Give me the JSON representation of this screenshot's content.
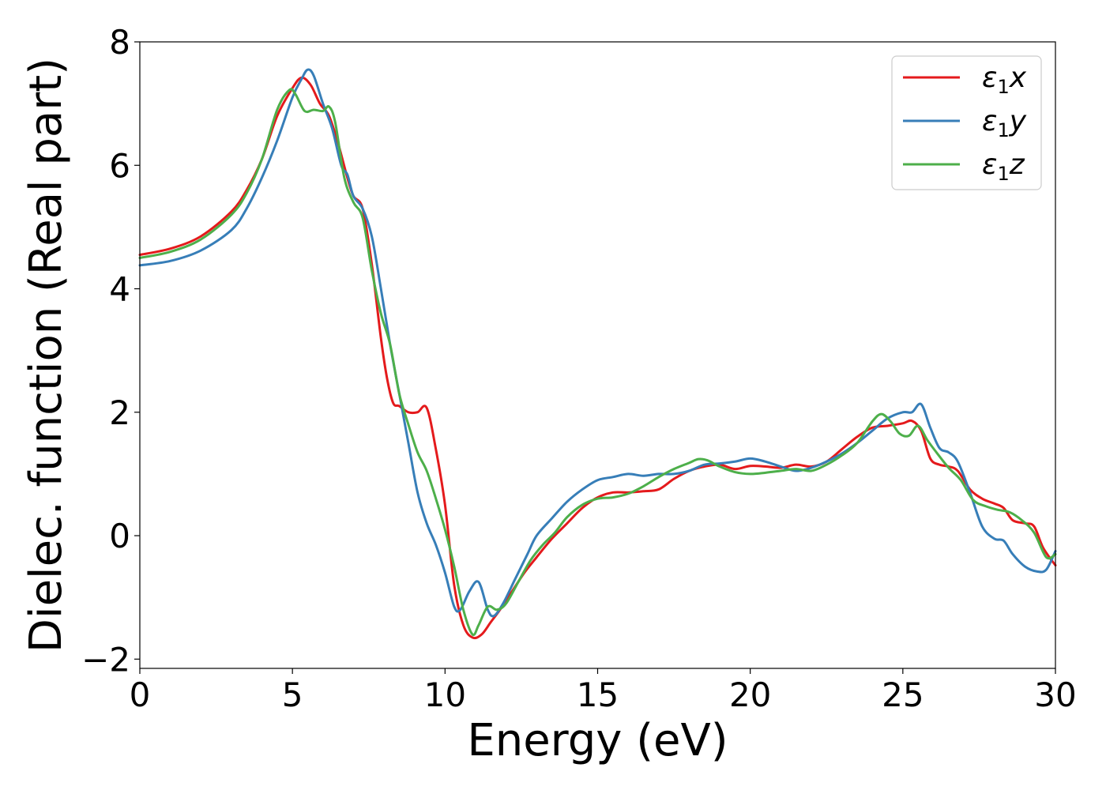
{
  "chart_data": {
    "type": "line",
    "title": "",
    "xlabel": "Energy (eV)",
    "ylabel": "Dielec. function (Real part)",
    "xlim": [
      0,
      30
    ],
    "ylim": [
      -2.15,
      8
    ],
    "xticks": [
      0,
      5,
      10,
      15,
      20,
      25,
      30
    ],
    "yticks": [
      -2,
      0,
      2,
      4,
      6,
      8
    ],
    "xtick_labels": [
      "0",
      "5",
      "10",
      "15",
      "20",
      "25",
      "30"
    ],
    "ytick_labels": [
      "−2",
      "0",
      "2",
      "4",
      "6",
      "8"
    ],
    "grid": false,
    "legend_position": "top-right",
    "series": [
      {
        "name": "ε₁x",
        "legend_base": "ε",
        "legend_sub": "1",
        "legend_var": "x",
        "color": "#e41a1c",
        "x": [
          0,
          1,
          2,
          3,
          3.5,
          4,
          4.5,
          5,
          5.3,
          5.6,
          5.9,
          6.2,
          6.5,
          6.8,
          7.0,
          7.3,
          7.6,
          7.9,
          8.1,
          8.3,
          8.5,
          8.8,
          9.1,
          9.4,
          9.7,
          10.0,
          10.3,
          10.6,
          10.9,
          11.2,
          11.5,
          11.8,
          12.2,
          12.6,
          13.0,
          13.5,
          14.0,
          14.5,
          15.0,
          15.5,
          16.0,
          16.5,
          17.0,
          17.5,
          18.0,
          18.5,
          19.0,
          19.5,
          20.0,
          20.5,
          21.0,
          21.5,
          22.0,
          22.5,
          23.0,
          23.5,
          24.0,
          24.5,
          25.0,
          25.3,
          25.6,
          25.9,
          26.2,
          26.5,
          26.8,
          27.2,
          27.6,
          28.0,
          28.3,
          28.6,
          29.0,
          29.3,
          29.6,
          30.0
        ],
        "y": [
          4.55,
          4.65,
          4.85,
          5.25,
          5.6,
          6.1,
          6.8,
          7.25,
          7.42,
          7.3,
          7.0,
          6.8,
          6.35,
          5.8,
          5.5,
          5.3,
          4.4,
          3.2,
          2.55,
          2.15,
          2.1,
          2.0,
          2.0,
          2.07,
          1.4,
          0.5,
          -0.8,
          -1.45,
          -1.65,
          -1.6,
          -1.4,
          -1.2,
          -0.9,
          -0.6,
          -0.35,
          -0.05,
          0.2,
          0.45,
          0.62,
          0.7,
          0.7,
          0.72,
          0.75,
          0.92,
          1.05,
          1.12,
          1.15,
          1.08,
          1.13,
          1.12,
          1.1,
          1.15,
          1.12,
          1.2,
          1.4,
          1.6,
          1.75,
          1.78,
          1.82,
          1.86,
          1.7,
          1.25,
          1.15,
          1.12,
          1.05,
          0.75,
          0.6,
          0.52,
          0.45,
          0.25,
          0.2,
          0.15,
          -0.2,
          -0.48
        ]
      },
      {
        "name": "ε₁y",
        "legend_base": "ε",
        "legend_sub": "1",
        "legend_var": "y",
        "color": "#377eb8",
        "x": [
          0,
          1,
          2,
          3,
          3.5,
          4,
          4.5,
          5,
          5.3,
          5.5,
          5.7,
          6.0,
          6.3,
          6.6,
          6.8,
          7.0,
          7.3,
          7.6,
          7.9,
          8.2,
          8.5,
          8.8,
          9.1,
          9.4,
          9.7,
          10.0,
          10.3,
          10.5,
          10.8,
          11.1,
          11.4,
          11.6,
          11.9,
          12.3,
          12.7,
          13.0,
          13.5,
          14.0,
          14.5,
          15.0,
          15.5,
          16.0,
          16.5,
          17.0,
          17.5,
          18.0,
          18.5,
          19.0,
          19.5,
          20.0,
          20.5,
          21.0,
          21.5,
          22.0,
          22.5,
          23.0,
          23.5,
          24.0,
          24.5,
          25.0,
          25.3,
          25.6,
          25.9,
          26.2,
          26.5,
          26.8,
          27.2,
          27.6,
          28.0,
          28.3,
          28.6,
          29.0,
          29.4,
          29.7,
          30.0
        ],
        "y": [
          4.38,
          4.45,
          4.62,
          4.95,
          5.3,
          5.8,
          6.4,
          7.1,
          7.4,
          7.55,
          7.45,
          7.0,
          6.6,
          6.0,
          5.85,
          5.5,
          5.3,
          4.85,
          4.0,
          3.1,
          2.3,
          1.5,
          0.7,
          0.2,
          -0.15,
          -0.6,
          -1.15,
          -1.2,
          -0.9,
          -0.75,
          -1.2,
          -1.3,
          -1.1,
          -0.7,
          -0.3,
          0.0,
          0.28,
          0.55,
          0.75,
          0.9,
          0.95,
          1.0,
          0.97,
          1.0,
          1.0,
          1.05,
          1.15,
          1.17,
          1.2,
          1.25,
          1.2,
          1.12,
          1.05,
          1.1,
          1.2,
          1.33,
          1.5,
          1.7,
          1.9,
          2.0,
          2.0,
          2.13,
          1.75,
          1.42,
          1.35,
          1.2,
          0.7,
          0.15,
          -0.05,
          -0.08,
          -0.3,
          -0.5,
          -0.58,
          -0.55,
          -0.25
        ]
      },
      {
        "name": "ε₁z",
        "legend_base": "ε",
        "legend_sub": "1",
        "legend_var": "z",
        "color": "#4daf4a",
        "x": [
          0,
          1,
          2,
          3,
          3.5,
          4,
          4.5,
          4.9,
          5.1,
          5.4,
          5.7,
          6.0,
          6.2,
          6.4,
          6.7,
          7.0,
          7.3,
          7.6,
          7.9,
          8.2,
          8.5,
          8.8,
          9.1,
          9.4,
          9.7,
          10.0,
          10.3,
          10.6,
          10.9,
          11.1,
          11.4,
          11.7,
          12.0,
          12.4,
          12.8,
          13.2,
          13.6,
          14.0,
          14.5,
          15.0,
          15.5,
          16.0,
          16.5,
          17.0,
          17.5,
          18.0,
          18.3,
          18.6,
          19.0,
          19.5,
          20.0,
          20.5,
          21.0,
          21.5,
          22.0,
          22.5,
          23.0,
          23.5,
          24.0,
          24.3,
          24.6,
          24.9,
          25.2,
          25.5,
          25.8,
          26.1,
          26.5,
          26.9,
          27.3,
          27.7,
          28.1,
          28.5,
          28.9,
          29.3,
          29.7,
          30.0
        ],
        "y": [
          4.5,
          4.6,
          4.8,
          5.2,
          5.55,
          6.1,
          6.9,
          7.22,
          7.15,
          6.88,
          6.9,
          6.88,
          6.95,
          6.7,
          5.8,
          5.4,
          5.15,
          4.3,
          3.6,
          3.1,
          2.3,
          1.8,
          1.35,
          1.05,
          0.6,
          0.1,
          -0.5,
          -1.2,
          -1.6,
          -1.45,
          -1.15,
          -1.2,
          -1.1,
          -0.75,
          -0.4,
          -0.15,
          0.05,
          0.3,
          0.5,
          0.6,
          0.62,
          0.68,
          0.8,
          0.95,
          1.08,
          1.18,
          1.24,
          1.22,
          1.12,
          1.03,
          1.0,
          1.02,
          1.05,
          1.08,
          1.05,
          1.15,
          1.3,
          1.5,
          1.85,
          1.97,
          1.85,
          1.65,
          1.62,
          1.78,
          1.55,
          1.35,
          1.1,
          0.9,
          0.58,
          0.48,
          0.42,
          0.38,
          0.25,
          0.05,
          -0.35,
          -0.3
        ]
      }
    ]
  }
}
